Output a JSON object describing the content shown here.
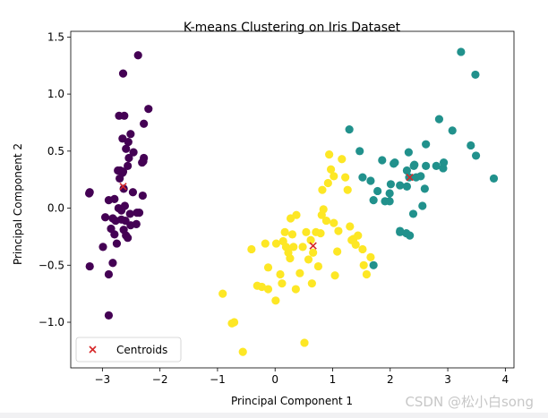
{
  "chart_data": {
    "type": "scatter",
    "title": "K-means Clustering on Iris Dataset",
    "xlabel": "Principal Component 1",
    "ylabel": "Principal Component 2",
    "xlim": [
      -3.55,
      4.15
    ],
    "ylim": [
      -1.4,
      1.55
    ],
    "xticks": [
      -3,
      -2,
      -1,
      0,
      1,
      2,
      3,
      4
    ],
    "yticks": [
      -1.0,
      -0.5,
      0.0,
      0.5,
      1.0,
      1.5
    ],
    "xtick_labels": [
      "−3",
      "−2",
      "−1",
      "0",
      "1",
      "2",
      "3",
      "4"
    ],
    "ytick_labels": [
      "−1.0",
      "−0.5",
      "0.0",
      "0.5",
      "1.0",
      "1.5"
    ],
    "grid": false,
    "legend": {
      "placement": "bottom-left",
      "entries": [
        "Centroids"
      ]
    },
    "colors": {
      "cluster_purple": "#440154",
      "cluster_teal": "#21918c",
      "cluster_yellow": "#fde725",
      "centroid": "#d62728"
    },
    "series": [
      {
        "color": "#440154",
        "x": [
          -2.69,
          -2.72,
          -2.89,
          -2.75,
          -2.73,
          -2.28,
          -2.82,
          -2.63,
          -2.89,
          -2.67,
          -2.51,
          -2.61,
          -2.79,
          -3.22,
          -2.64,
          -2.38,
          -2.62,
          -2.65,
          -2.2,
          -2.59,
          -2.31,
          -2.54,
          -3.22,
          -2.3,
          -2.36,
          -2.51,
          -2.47,
          -2.56,
          -2.64,
          -2.63,
          -2.59,
          -2.41,
          -2.65,
          -2.6,
          -2.99,
          -2.89,
          -2.85,
          -2.77,
          -2.67,
          -2.28,
          -2.55,
          -2.7,
          -2.82,
          -2.56,
          -2.46,
          -2.29,
          -2.71,
          -2.79,
          -2.4,
          -3.23,
          -2.52,
          -2.95
        ],
        "y": [
          0.33,
          0.0,
          -0.58,
          -0.31,
          0.33,
          0.74,
          -0.09,
          0.17,
          -0.94,
          -0.1,
          0.65,
          0.02,
          -0.23,
          -0.51,
          1.18,
          1.34,
          0.81,
          0.31,
          0.87,
          0.52,
          0.4,
          0.44,
          0.14,
          0.11,
          -0.04,
          -0.15,
          0.14,
          0.37,
          0.32,
          -0.19,
          -0.24,
          -0.14,
          0.61,
          -0.11,
          -0.34,
          0.07,
          -0.18,
          -0.11,
          -0.02,
          0.44,
          0.58,
          0.26,
          -0.48,
          -0.26,
          0.49,
          0.41,
          0.81,
          0.08,
          -0.04,
          0.13,
          -0.05,
          -0.08
        ]
      },
      {
        "color": "#21918c",
        "x": [
          1.29,
          1.47,
          1.52,
          1.66,
          1.71,
          1.78,
          1.86,
          1.91,
          1.99,
          2.01,
          2.06,
          2.08,
          2.17,
          2.17,
          2.28,
          2.29,
          2.32,
          2.33,
          2.34,
          2.4,
          2.42,
          2.45,
          2.56,
          2.62,
          2.62,
          2.8,
          2.85,
          2.92,
          2.93,
          3.08,
          3.23,
          3.4,
          3.49,
          3.48,
          3.8,
          1.99,
          2.17,
          2.29,
          2.41,
          2.53,
          2.6,
          1.71
        ],
        "y": [
          0.69,
          0.5,
          0.27,
          0.24,
          0.07,
          0.15,
          0.42,
          0.06,
          0.06,
          0.21,
          0.39,
          0.4,
          -0.2,
          0.2,
          -0.22,
          0.33,
          0.49,
          0.27,
          -0.24,
          -0.05,
          0.38,
          0.27,
          0.02,
          0.56,
          0.37,
          0.37,
          0.78,
          0.35,
          0.4,
          0.68,
          1.37,
          0.55,
          0.46,
          1.17,
          0.26,
          0.13,
          -0.21,
          0.19,
          0.37,
          0.28,
          0.17,
          -0.5
        ]
      },
      {
        "color": "#fde725",
        "x": [
          -0.91,
          -0.75,
          -0.71,
          -0.56,
          -0.41,
          -0.31,
          -0.23,
          -0.17,
          -0.12,
          0.02,
          0.09,
          0.12,
          0.14,
          0.17,
          0.19,
          0.23,
          0.26,
          0.27,
          0.3,
          0.36,
          0.43,
          0.48,
          0.51,
          0.58,
          0.62,
          0.64,
          0.66,
          0.71,
          0.75,
          0.81,
          0.82,
          0.89,
          0.92,
          0.94,
          0.97,
          1.02,
          1.04,
          1.08,
          1.1,
          1.16,
          1.22,
          1.26,
          1.3,
          1.33,
          1.36,
          1.4,
          1.44,
          1.52,
          1.54,
          1.59,
          1.66,
          0.84,
          0.79,
          0.32,
          0.01,
          -0.12,
          0.37,
          0.54,
          1.02
        ],
        "y": [
          -0.75,
          -1.01,
          -1.0,
          -1.26,
          -0.36,
          -0.68,
          -0.69,
          -0.31,
          -0.71,
          -0.31,
          -0.58,
          -0.66,
          -0.29,
          -0.21,
          -0.34,
          -0.39,
          -0.44,
          -0.09,
          -0.23,
          -0.71,
          -0.57,
          -0.34,
          -1.18,
          -0.45,
          -0.28,
          -0.66,
          -0.39,
          -0.21,
          -0.51,
          -0.06,
          0.16,
          -0.11,
          0.22,
          0.47,
          0.34,
          0.28,
          -0.59,
          -0.38,
          -0.2,
          0.43,
          0.27,
          0.16,
          -0.16,
          -0.28,
          -0.27,
          -0.32,
          -0.24,
          -0.36,
          -0.5,
          -0.58,
          -0.43,
          -0.01,
          -0.22,
          -0.34,
          -0.81,
          -0.52,
          -0.06,
          -0.21,
          -0.13
        ]
      }
    ],
    "centroids": {
      "name": "Centroids",
      "x": [
        -2.64,
        0.66,
        2.34
      ],
      "y": [
        0.19,
        -0.33,
        0.27
      ]
    }
  },
  "watermark": "CSDN @松小白song"
}
